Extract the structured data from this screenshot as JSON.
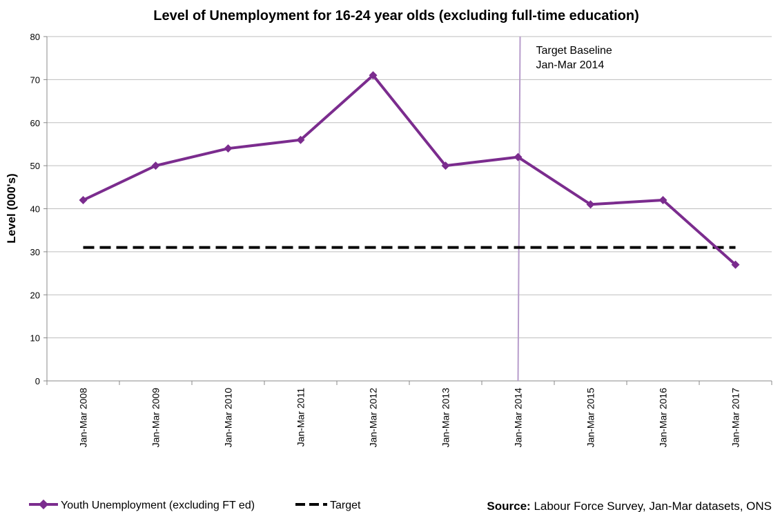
{
  "chart_data": {
    "type": "line",
    "title": "Level of Unemployment for 16-24 year olds (excluding full-time education)",
    "ylabel": "Level (000's)",
    "xlabel": "",
    "ylim": [
      0,
      80
    ],
    "yticks": [
      0,
      10,
      20,
      30,
      40,
      50,
      60,
      70,
      80
    ],
    "grid": true,
    "categories": [
      "Jan-Mar 2008",
      "Jan-Mar 2009",
      "Jan-Mar 2010",
      "Jan-Mar 2011",
      "Jan-Mar 2012",
      "Jan-Mar 2013",
      "Jan-Mar 2014",
      "Jan-Mar 2015",
      "Jan-Mar 2016",
      "Jan-Mar 2017"
    ],
    "series": [
      {
        "name": "Youth Unemployment (excluding FT ed)",
        "color": "#7B2C8E",
        "style": "solid-diamond-markers",
        "values": [
          42,
          50,
          54,
          56,
          71,
          50,
          52,
          41,
          42,
          27
        ]
      },
      {
        "name": "Target",
        "color": "#000000",
        "style": "dashed",
        "values": [
          31,
          31,
          31,
          31,
          31,
          31,
          31,
          31,
          31,
          31
        ]
      }
    ],
    "baseline_marker": {
      "category": "Jan-Mar 2014",
      "color": "#B79CCB",
      "label_lines": [
        "Target Baseline",
        "Jan-Mar 2014"
      ]
    },
    "legend_position": "bottom-left"
  },
  "source": {
    "prefix": "Source:",
    "text": " Labour Force Survey,  Jan-Mar datasets, ONS"
  }
}
